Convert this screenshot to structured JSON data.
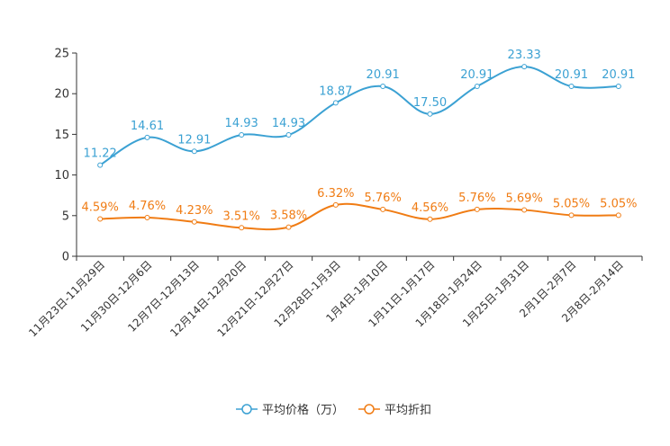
{
  "chart_data": {
    "type": "line",
    "categories": [
      "11月23日-11月29日",
      "11月30日-12月6日",
      "12月7日-12月13日",
      "12月14日-12月20日",
      "12月21日-12月27日",
      "12月28日-1月3日",
      "1月4日-1月10日",
      "1月11日-1月17日",
      "1月18日-1月24日",
      "1月25日-1月31日",
      "2月1日-2月7日",
      "2月8日-2月14日"
    ],
    "ylim": [
      0,
      25
    ],
    "yticks": [
      0,
      5,
      10,
      15,
      20,
      25
    ],
    "series": [
      {
        "name": "平均价格（万）",
        "color": "#3ba1d3",
        "values": [
          11.22,
          14.61,
          12.91,
          14.93,
          14.93,
          18.87,
          20.91,
          17.5,
          20.91,
          23.33,
          20.91,
          20.91
        ],
        "labels": [
          "11.22",
          "14.61",
          "12.91",
          "14.93",
          "14.93",
          "18.87",
          "20.91",
          "17.50",
          "20.91",
          "23.33",
          "20.91",
          "20.91"
        ]
      },
      {
        "name": "平均折扣",
        "color": "#f07c14",
        "values": [
          4.59,
          4.76,
          4.23,
          3.51,
          3.58,
          6.32,
          5.76,
          4.56,
          5.76,
          5.69,
          5.05,
          5.05
        ],
        "labels": [
          "4.59%",
          "4.76%",
          "4.23%",
          "3.51%",
          "3.58%",
          "6.32%",
          "5.76%",
          "4.56%",
          "5.76%",
          "5.69%",
          "5.05%",
          "5.05%"
        ]
      }
    ]
  }
}
